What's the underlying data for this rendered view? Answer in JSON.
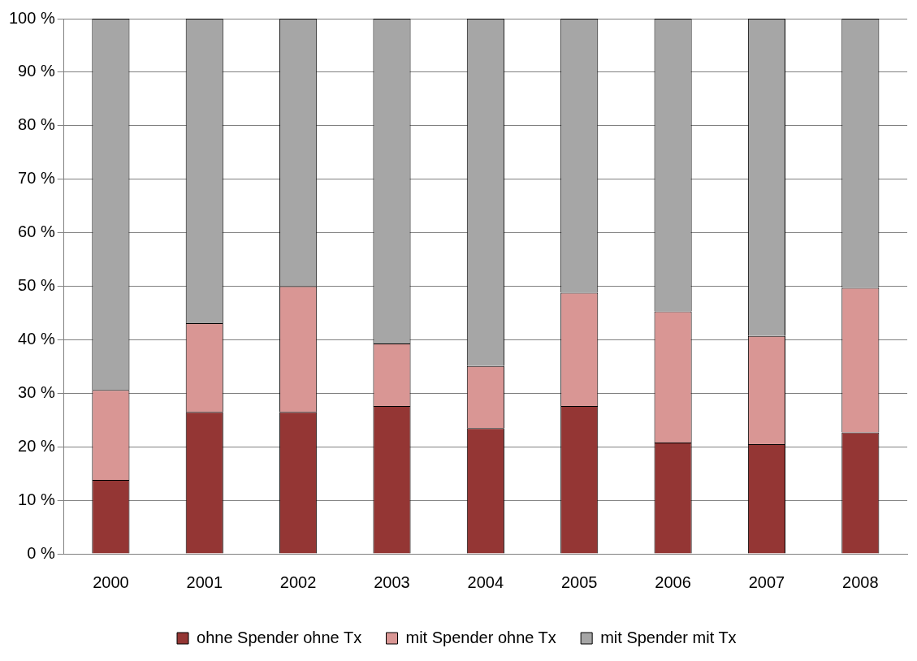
{
  "chart_data": {
    "type": "bar",
    "stacked": true,
    "categories": [
      "2000",
      "2001",
      "2002",
      "2003",
      "2004",
      "2005",
      "2006",
      "2007",
      "2008"
    ],
    "series": [
      {
        "name": "ohne Spender ohne Tx",
        "color": "#943634",
        "values": [
          13.8,
          26.5,
          26.5,
          27.6,
          23.5,
          27.6,
          20.8,
          20.5,
          22.7
        ]
      },
      {
        "name": "mit Spender ohne Tx",
        "color": "#d99694",
        "values": [
          16.8,
          16.6,
          23.5,
          11.7,
          11.6,
          21.2,
          24.5,
          20.2,
          27.0
        ]
      },
      {
        "name": "mit Spender mit Tx",
        "color": "#a6a6a6",
        "values": [
          69.4,
          56.9,
          50.0,
          60.7,
          64.9,
          51.2,
          54.7,
          59.3,
          50.3
        ]
      }
    ],
    "ylim": [
      0,
      100
    ],
    "yticks": [
      {
        "value": 0,
        "label": "0 %"
      },
      {
        "value": 10,
        "label": "10 %"
      },
      {
        "value": 20,
        "label": "20 %"
      },
      {
        "value": 30,
        "label": "30 %"
      },
      {
        "value": 40,
        "label": "40 %"
      },
      {
        "value": 50,
        "label": "50 %"
      },
      {
        "value": 60,
        "label": "60 %"
      },
      {
        "value": 70,
        "label": "70 %"
      },
      {
        "value": 80,
        "label": "80 %"
      },
      {
        "value": 90,
        "label": "90 %"
      },
      {
        "value": 100,
        "label": "100 %"
      }
    ],
    "grid": "y",
    "legend": "bottom"
  }
}
